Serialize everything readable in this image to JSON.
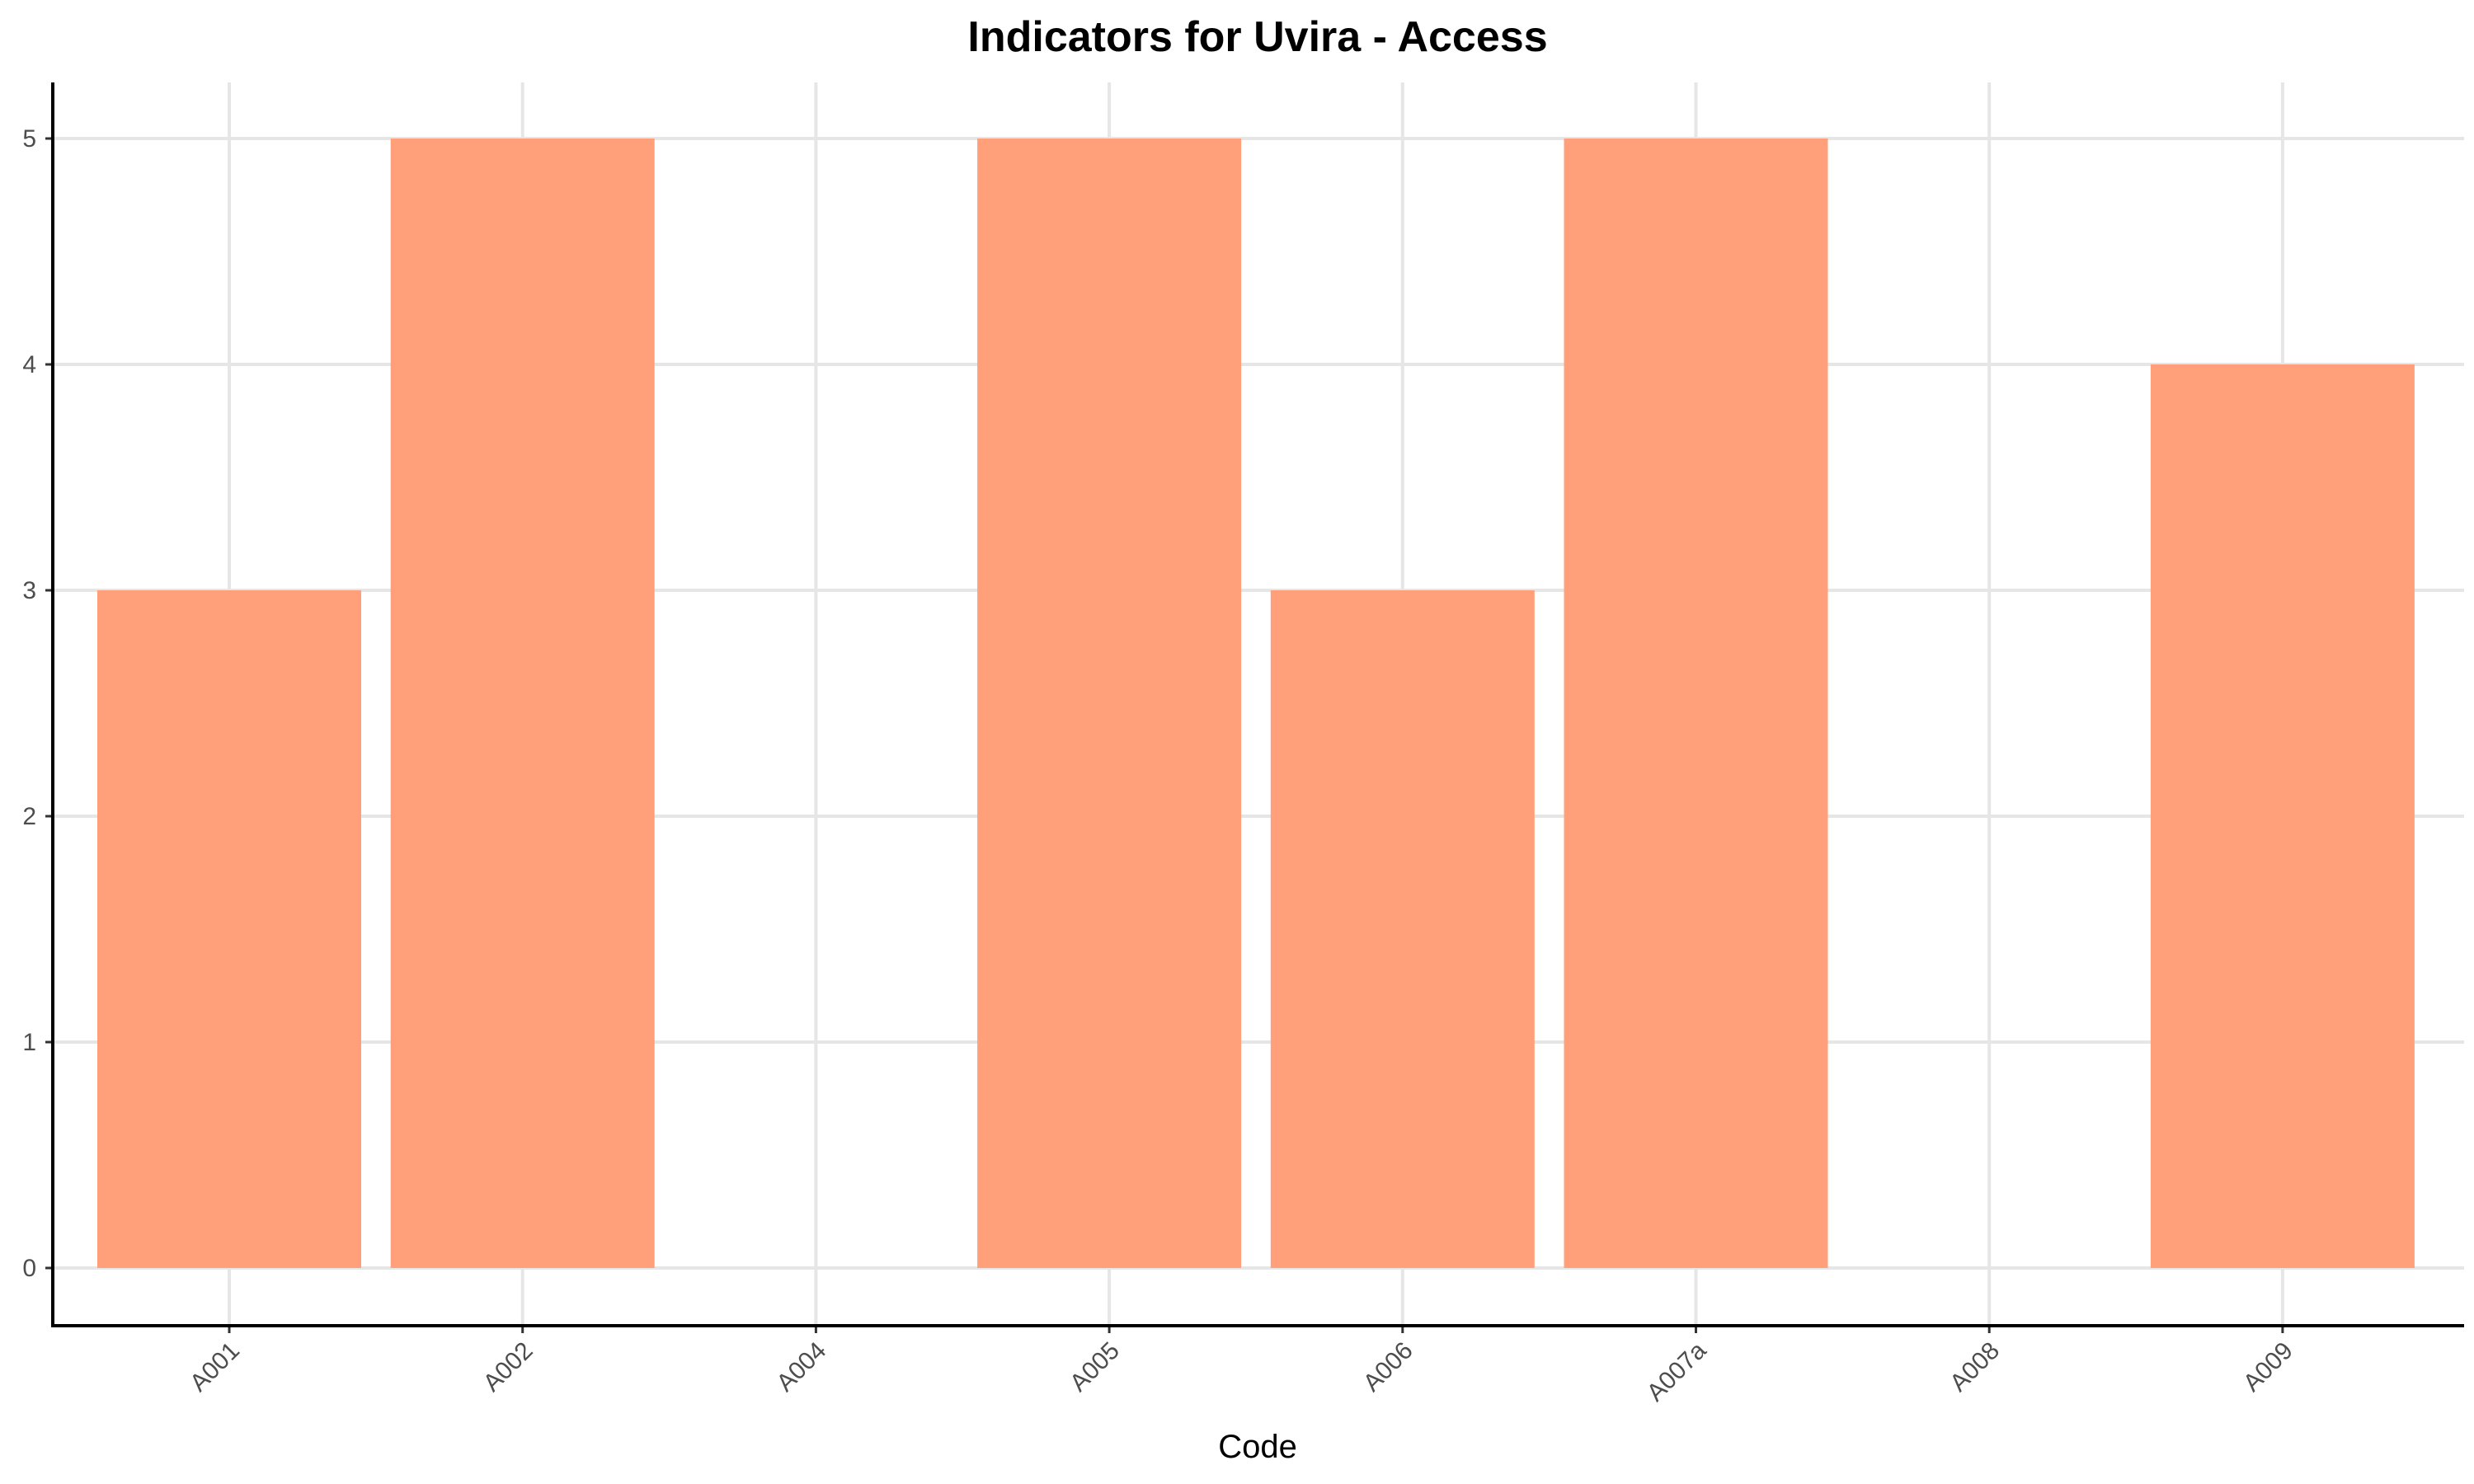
{
  "chart_data": {
    "type": "bar",
    "title": "Indicators for Uvira - Access",
    "xlabel": "Code",
    "ylabel": "",
    "categories": [
      "A001",
      "A002",
      "A004",
      "A005",
      "A006",
      "A007a",
      "A008",
      "A009"
    ],
    "values": [
      3,
      5,
      null,
      5,
      3,
      5,
      null,
      4
    ],
    "ylim": [
      0,
      5
    ],
    "yticks": [
      "0",
      "1",
      "2",
      "3",
      "4",
      "5"
    ],
    "grid": true,
    "legend": "none",
    "bar_color": "#FFA07A"
  }
}
